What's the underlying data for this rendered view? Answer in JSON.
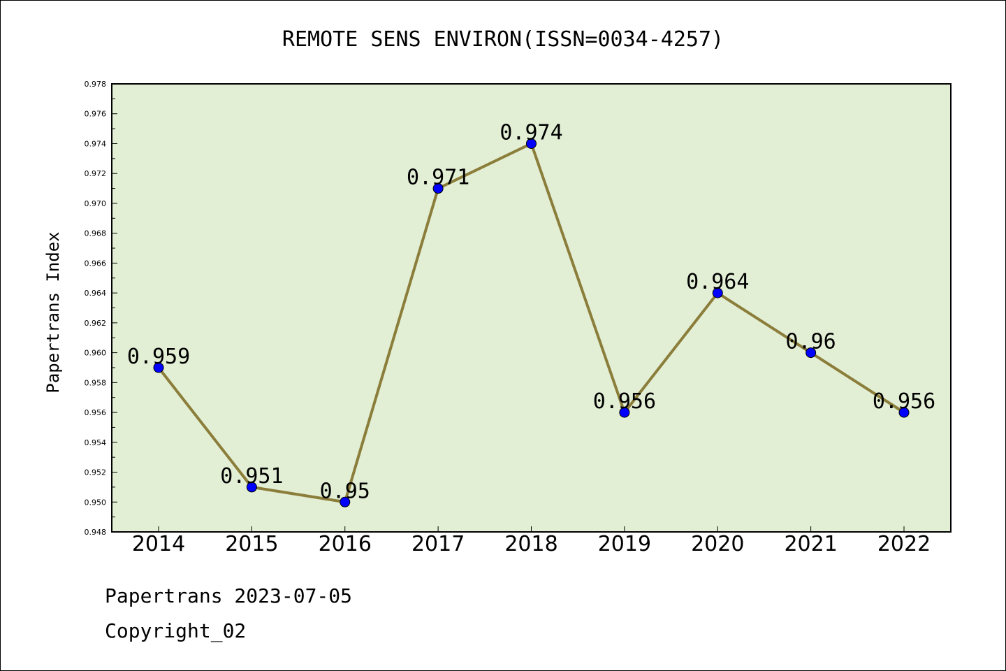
{
  "chart_data": {
    "type": "line",
    "title": "REMOTE SENS ENVIRON(ISSN=0034-4257)",
    "ylabel": "Papertrans Index",
    "xlabel": "",
    "categories": [
      "2014",
      "2015",
      "2016",
      "2017",
      "2018",
      "2019",
      "2020",
      "2021",
      "2022"
    ],
    "values": [
      0.959,
      0.951,
      0.95,
      0.971,
      0.974,
      0.956,
      0.964,
      0.96,
      0.956
    ],
    "data_labels": [
      "0.959",
      "0.951",
      "0.95",
      "0.971",
      "0.974",
      "0.956",
      "0.964",
      "0.96",
      "0.956"
    ],
    "ylim": [
      0.948,
      0.978
    ],
    "yticks": [
      "0.948",
      "0.950",
      "0.952",
      "0.954",
      "0.956",
      "0.958",
      "0.960",
      "0.962",
      "0.964",
      "0.966",
      "0.968",
      "0.970",
      "0.972",
      "0.974",
      "0.976",
      "0.978"
    ],
    "grid": false,
    "colors": {
      "plot_background": "#e2efd5",
      "line": "#8b7d3a",
      "marker": "#0000ff"
    }
  },
  "footer": {
    "line1": "Papertrans 2023-07-05",
    "line2": "Copyright_02"
  }
}
